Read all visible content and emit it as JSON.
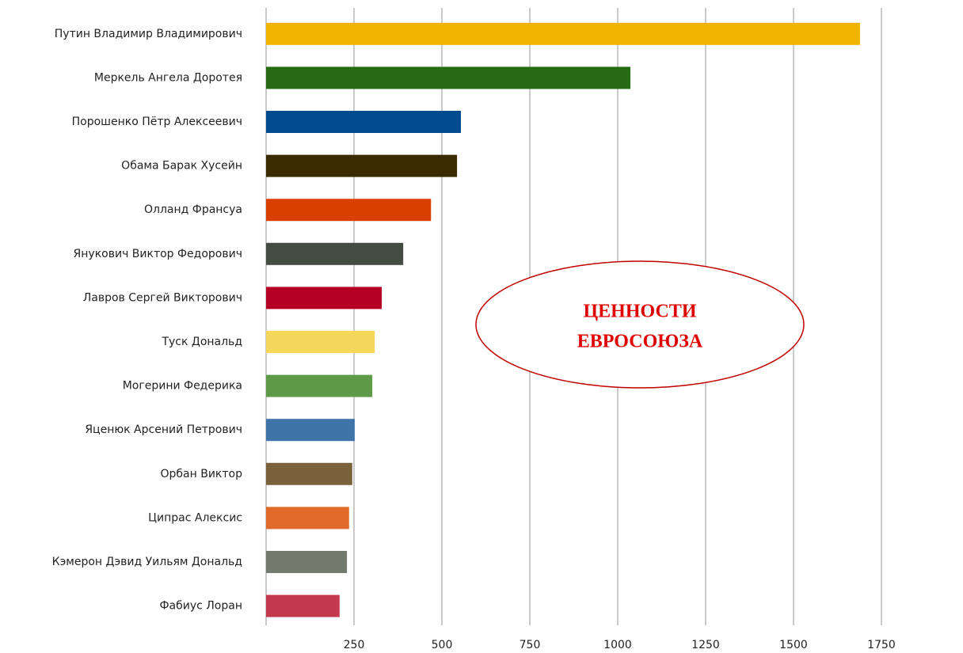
{
  "chart_data": {
    "type": "bar",
    "orientation": "horizontal",
    "categories": [
      "Путин Владимир Владимирович",
      "Меркель Ангела Доротея",
      "Порошенко Пётр Алексеевич",
      "Обама Барак Хусейн",
      "Олланд Франсуа",
      "Янукович Виктор Федорович",
      "Лавров Сергей Викторович",
      "Туск Дональд",
      "Могерини Федерика",
      "Яценюк Арсений Петрович",
      "Орбан Виктор",
      "Ципрас Алексис",
      "Кэмерон Дэвид Уильям Дональд",
      "Фабиус Лоран"
    ],
    "values": [
      1689,
      1036,
      554,
      543,
      469,
      390,
      329,
      309,
      302,
      252,
      245,
      236,
      230,
      209
    ],
    "colors": [
      "#f0b400",
      "#246b12",
      "#004a8f",
      "#3a2a00",
      "#d94000",
      "#434c41",
      "#b50024",
      "#f5d75a",
      "#5e9a47",
      "#3e74a8",
      "#7a623c",
      "#e06a2a",
      "#737a6e",
      "#c6384e"
    ],
    "xlim": [
      0,
      2000
    ],
    "xticks": [
      250,
      500,
      750,
      1000,
      1250,
      1500,
      1750
    ],
    "grid": true,
    "annotation": {
      "lines": [
        "ЦЕННОСТИ",
        "ЕВРОСОЮЗА"
      ],
      "color": "#e00000"
    }
  }
}
